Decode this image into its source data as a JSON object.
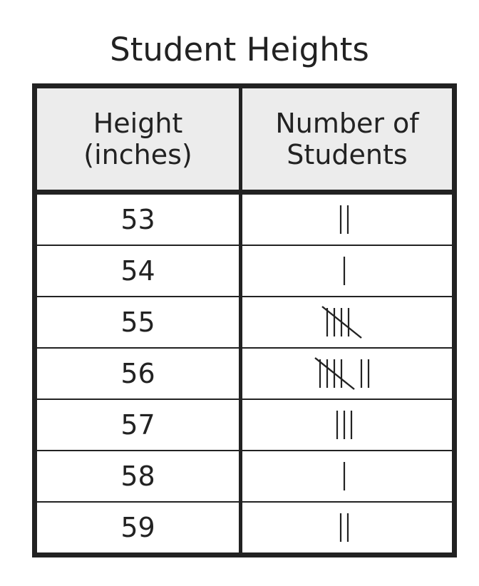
{
  "chart_data": {
    "type": "table",
    "title": "Student Heights",
    "columns": [
      [
        "Height",
        "(inches)"
      ],
      [
        "Number of",
        "Students"
      ]
    ],
    "rows": [
      {
        "height": "53",
        "count": 2
      },
      {
        "height": "54",
        "count": 1
      },
      {
        "height": "55",
        "count": 5
      },
      {
        "height": "56",
        "count": 7
      },
      {
        "height": "57",
        "count": 3
      },
      {
        "height": "58",
        "count": 1
      },
      {
        "height": "59",
        "count": 2
      }
    ]
  }
}
